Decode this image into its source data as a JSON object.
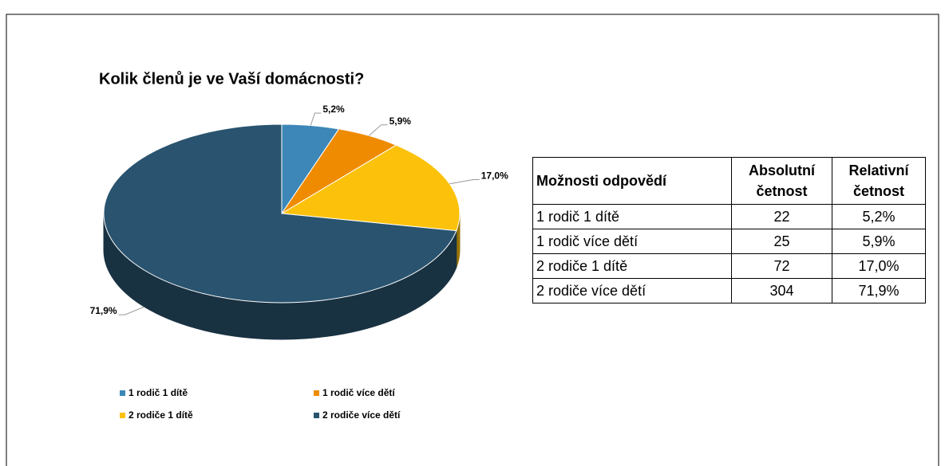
{
  "chart_data": {
    "type": "pie",
    "title": "Kolik členů je ve Vaší domácnosti?",
    "categories": [
      "1 rodič 1 dítě",
      "1 rodič více dětí",
      "2 rodiče 1 dítě",
      "2 rodiče více dětí"
    ],
    "values": [
      5.2,
      5.9,
      17.0,
      71.9
    ],
    "value_labels": [
      "5,2%",
      "5,9%",
      "17,0%",
      "71,9%"
    ],
    "colors": [
      "#3c87b8",
      "#ef8b00",
      "#fcc20b",
      "#29536e"
    ],
    "legend": "bottom"
  },
  "table": {
    "header": [
      "Možnosti odpovědí",
      "Absolutní četnost",
      "Relativní četnost"
    ],
    "rows": [
      [
        "1 rodič 1 dítě",
        "22",
        "5,2%"
      ],
      [
        "1 rodič více dětí",
        "25",
        "5,9%"
      ],
      [
        "2 rodiče 1 dítě",
        "72",
        "17,0%"
      ],
      [
        "2 rodiče více dětí",
        "304",
        "71,9%"
      ]
    ]
  }
}
